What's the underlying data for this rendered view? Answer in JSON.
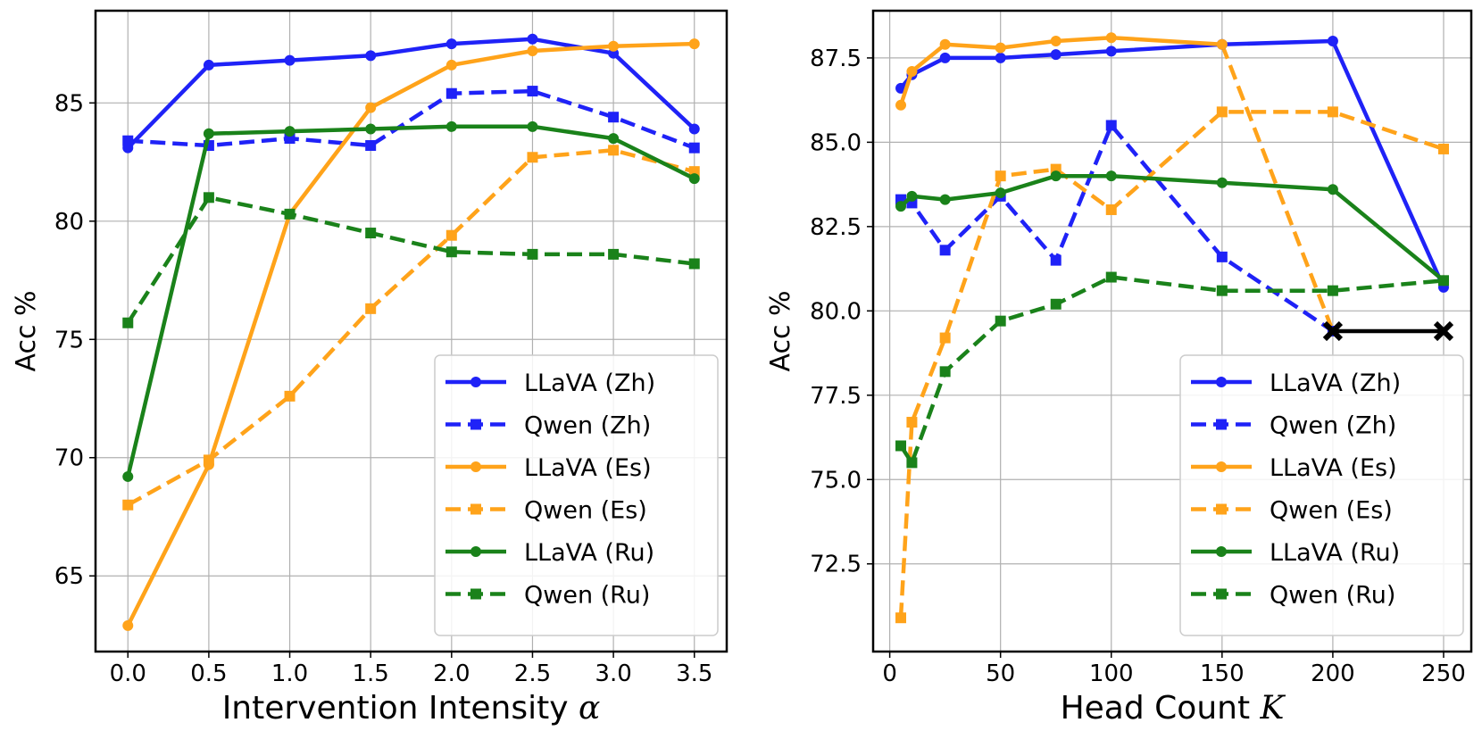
{
  "chart_data": [
    {
      "type": "line",
      "xlabel": "Intervention Intensity",
      "xlabel_symbol": "α",
      "ylabel": "Acc %",
      "xlim": [
        -0.2,
        3.7
      ],
      "ylim": [
        61.8,
        88.9
      ],
      "xticks": [
        0.0,
        0.5,
        1.0,
        1.5,
        2.0,
        2.5,
        3.0,
        3.5
      ],
      "xtick_labels": [
        "0.0",
        "0.5",
        "1.0",
        "1.5",
        "2.0",
        "2.5",
        "3.0",
        "3.5"
      ],
      "yticks": [
        65,
        70,
        75,
        80,
        85
      ],
      "ytick_labels": [
        "65",
        "70",
        "75",
        "80",
        "85"
      ],
      "grid": true,
      "legend_position": "bottom-right",
      "x": [
        0.0,
        0.5,
        1.0,
        1.5,
        2.0,
        2.5,
        3.0,
        3.5
      ],
      "series": [
        {
          "name": "LLaVA (Zh)",
          "color": "#1f22f7",
          "style": "solid",
          "marker": "circle",
          "values": [
            83.1,
            86.6,
            86.8,
            87.0,
            87.5,
            87.7,
            87.1,
            83.9
          ]
        },
        {
          "name": "Qwen (Zh)",
          "color": "#1f22f7",
          "style": "dashed",
          "marker": "square",
          "values": [
            83.4,
            83.2,
            83.5,
            83.2,
            85.4,
            85.5,
            84.4,
            83.1
          ]
        },
        {
          "name": "LLaVA (Es)",
          "color": "#ffa31a",
          "style": "solid",
          "marker": "circle",
          "values": [
            62.9,
            69.7,
            80.3,
            84.8,
            86.6,
            87.2,
            87.4,
            87.5
          ]
        },
        {
          "name": "Qwen (Es)",
          "color": "#ffa31a",
          "style": "dashed",
          "marker": "square",
          "values": [
            68.0,
            69.9,
            72.6,
            76.3,
            79.4,
            82.7,
            83.0,
            82.1
          ]
        },
        {
          "name": "LLaVA (Ru)",
          "color": "#1a821a",
          "style": "solid",
          "marker": "circle",
          "values": [
            69.2,
            83.7,
            83.8,
            83.9,
            84.0,
            84.0,
            83.5,
            81.8
          ]
        },
        {
          "name": "Qwen (Ru)",
          "color": "#1a821a",
          "style": "dashed",
          "marker": "square",
          "values": [
            75.7,
            81.0,
            80.3,
            79.5,
            78.7,
            78.6,
            78.6,
            78.2
          ]
        }
      ]
    },
    {
      "type": "line",
      "xlabel": "Head Count",
      "xlabel_symbol": "K",
      "ylabel": "Acc %",
      "xlim": [
        -7.5,
        262.5
      ],
      "ylim": [
        69.9,
        88.9
      ],
      "xticks": [
        0,
        50,
        100,
        150,
        200,
        250
      ],
      "xtick_labels": [
        "0",
        "50",
        "100",
        "150",
        "200",
        "250"
      ],
      "yticks": [
        72.5,
        75.0,
        77.5,
        80.0,
        82.5,
        85.0,
        87.5
      ],
      "ytick_labels": [
        "72.5",
        "75.0",
        "77.5",
        "80.0",
        "82.5",
        "85.0",
        "87.5"
      ],
      "grid": true,
      "legend_position": "bottom-right",
      "series": [
        {
          "name": "LLaVA (Zh)",
          "color": "#1f22f7",
          "style": "solid",
          "marker": "circle",
          "x": [
            5,
            10,
            25,
            50,
            75,
            100,
            150,
            200,
            250
          ],
          "values": [
            86.6,
            87.0,
            87.5,
            87.5,
            87.6,
            87.7,
            87.9,
            88.0,
            80.7
          ]
        },
        {
          "name": "Qwen (Zh)",
          "color": "#1f22f7",
          "style": "dashed",
          "marker": "square",
          "x": [
            5,
            10,
            25,
            50,
            75,
            100,
            150,
            200
          ],
          "values": [
            83.3,
            83.2,
            81.8,
            83.4,
            81.5,
            85.5,
            81.6,
            79.4
          ]
        },
        {
          "name": "LLaVA (Es)",
          "color": "#ffa31a",
          "style": "solid",
          "marker": "circle",
          "x": [
            5,
            10,
            25,
            50,
            75,
            100,
            150
          ],
          "values": [
            86.1,
            87.1,
            87.9,
            87.8,
            88.0,
            88.1,
            87.9
          ]
        },
        {
          "name": "Qwen (Es)",
          "color": "#ffa31a",
          "style": "dashed",
          "marker": "square",
          "x": [
            5,
            10,
            25,
            50,
            75,
            100,
            150,
            200,
            250
          ],
          "values": [
            70.9,
            76.7,
            79.2,
            84.0,
            84.2,
            83.0,
            85.9,
            85.9,
            84.8
          ]
        },
        {
          "name": "LLaVA (Ru)",
          "color": "#1a821a",
          "style": "solid",
          "marker": "circle",
          "x": [
            5,
            10,
            25,
            50,
            75,
            100,
            150,
            200,
            250
          ],
          "values": [
            83.1,
            83.4,
            83.3,
            83.5,
            84.0,
            84.0,
            83.8,
            83.6,
            80.9
          ]
        },
        {
          "name": "Qwen (Ru)",
          "color": "#1a821a",
          "style": "dashed",
          "marker": "square",
          "x": [
            5,
            10,
            25,
            50,
            75,
            100,
            150,
            200,
            250
          ],
          "values": [
            76.0,
            75.5,
            78.2,
            79.7,
            80.2,
            81.0,
            80.6,
            80.6,
            80.9
          ]
        }
      ],
      "annotations": [
        {
          "type": "failure-line",
          "color": "#000000",
          "marker": "x",
          "x": [
            200,
            250
          ],
          "values": [
            79.4,
            79.4
          ]
        },
        {
          "type": "dashed-drop",
          "color": "#ffa31a",
          "x": [
            150,
            200
          ],
          "values": [
            87.9,
            79.4
          ]
        }
      ]
    }
  ]
}
